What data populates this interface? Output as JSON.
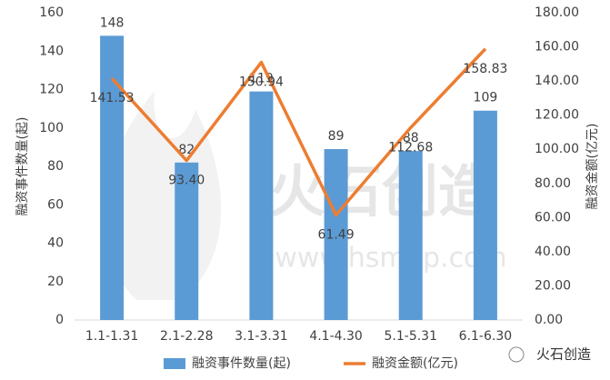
{
  "chart_data": {
    "type": "combo",
    "categories": [
      "1.1-1.31",
      "2.1-2.28",
      "3.1-3.31",
      "4.1-4.30",
      "5.1-5.31",
      "6.1-6.30"
    ],
    "series": [
      {
        "name": "融资事件数量(起)",
        "type": "bar",
        "color": "#5b9bd5",
        "values": [
          148,
          82,
          119,
          89,
          88,
          109
        ]
      },
      {
        "name": "融资金额(亿元)",
        "type": "line",
        "axis": "y2",
        "color": "#ed7d31",
        "values": [
          141.53,
          93.4,
          150.94,
          61.49,
          112.68,
          158.83
        ],
        "value_labels": [
          "141.53",
          "93.40",
          "150.94",
          "61.49",
          "112.68",
          "158.83"
        ]
      }
    ],
    "ylabel": "融资事件数量(起)",
    "y2label": "融资金额(亿元)",
    "ylim": [
      0,
      160
    ],
    "yticks": [
      0,
      20,
      40,
      60,
      80,
      100,
      120,
      140,
      160
    ],
    "y2lim": [
      0,
      180
    ],
    "y2ticks": [
      {
        "value": 0,
        "label": "0.00"
      },
      {
        "value": 20,
        "label": "20.00"
      },
      {
        "value": 40,
        "label": "40.00"
      },
      {
        "value": 60,
        "label": "60.00"
      },
      {
        "value": 80,
        "label": "80.00"
      },
      {
        "value": 100,
        "label": "100.00"
      },
      {
        "value": 120,
        "label": "120.00"
      },
      {
        "value": 140,
        "label": "140.00"
      },
      {
        "value": 160,
        "label": "160.00"
      },
      {
        "value": 180,
        "label": "180.00"
      }
    ],
    "legend": "bottom"
  },
  "watermark": {
    "title": "火石创造",
    "url": "www.hsmap.com"
  },
  "logo": "火石创造"
}
